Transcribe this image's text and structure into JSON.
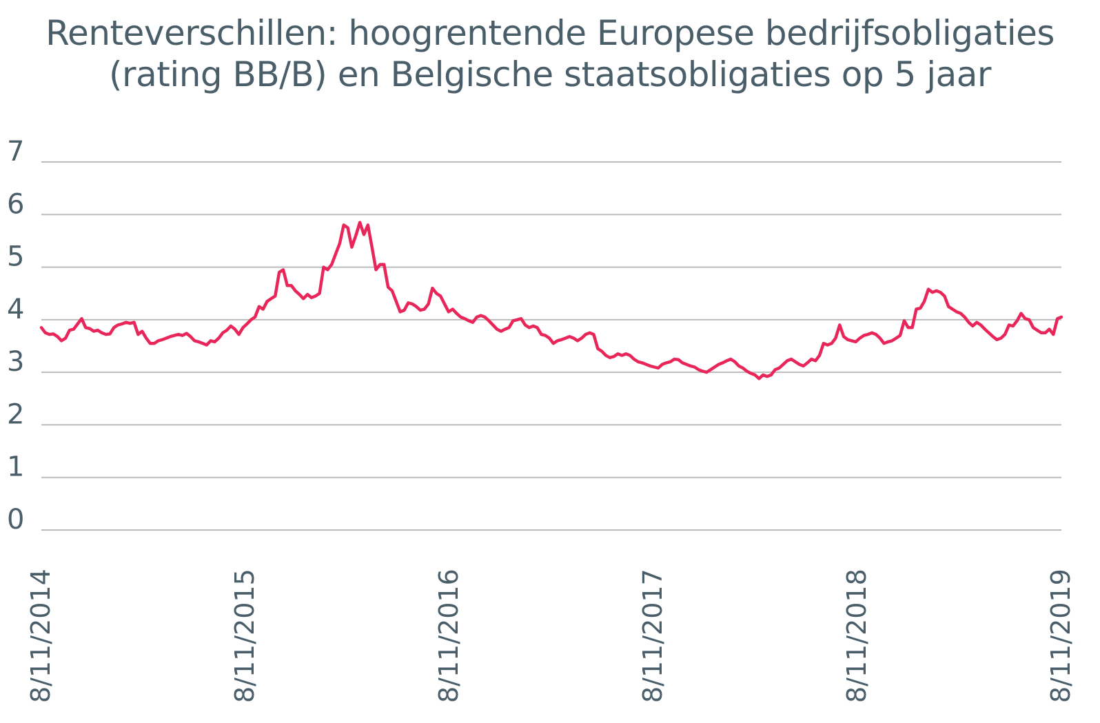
{
  "chart_data": {
    "type": "line",
    "title_lines": [
      "Renteverschillen: hoogrentende Europese bedrijfsobligaties",
      "(rating BB/B) en Belgische staatsobligaties op 5 jaar"
    ],
    "xlabel": "",
    "ylabel": "",
    "ylim": [
      0,
      7
    ],
    "y_ticks": [
      "0",
      "1",
      "2",
      "3",
      "4",
      "5",
      "6",
      "7"
    ],
    "x_tick_labels": [
      "8/11/2014",
      "8/11/2015",
      "8/11/2016",
      "8/11/2017",
      "8/11/2018",
      "8/11/2019"
    ],
    "x_range_years": [
      2014,
      2019
    ],
    "grid": true,
    "legend": "none",
    "series": [
      {
        "color": "#e8265a",
        "values": [
          3.85,
          3.75,
          3.72,
          3.73,
          3.68,
          3.6,
          3.65,
          3.8,
          3.82,
          3.92,
          4.02,
          3.85,
          3.83,
          3.78,
          3.8,
          3.75,
          3.72,
          3.73,
          3.85,
          3.9,
          3.92,
          3.95,
          3.93,
          3.95,
          3.72,
          3.78,
          3.65,
          3.55,
          3.55,
          3.6,
          3.62,
          3.65,
          3.68,
          3.7,
          3.72,
          3.7,
          3.74,
          3.68,
          3.6,
          3.58,
          3.55,
          3.52,
          3.6,
          3.58,
          3.65,
          3.75,
          3.8,
          3.88,
          3.82,
          3.72,
          3.85,
          3.92,
          4.0,
          4.05,
          4.25,
          4.2,
          4.35,
          4.4,
          4.45,
          4.9,
          4.95,
          4.65,
          4.65,
          4.55,
          4.48,
          4.4,
          4.48,
          4.42,
          4.45,
          4.5,
          5.0,
          4.95,
          5.05,
          5.25,
          5.45,
          5.8,
          5.75,
          5.38,
          5.6,
          5.85,
          5.62,
          5.8,
          5.38,
          4.95,
          5.05,
          5.05,
          4.62,
          4.55,
          4.35,
          4.15,
          4.18,
          4.32,
          4.3,
          4.25,
          4.18,
          4.2,
          4.3,
          4.6,
          4.5,
          4.45,
          4.3,
          4.15,
          4.2,
          4.12,
          4.05,
          4.02,
          3.98,
          3.95,
          4.05,
          4.08,
          4.05,
          3.98,
          3.9,
          3.82,
          3.78,
          3.82,
          3.85,
          3.98,
          4.0,
          4.02,
          3.9,
          3.85,
          3.88,
          3.85,
          3.72,
          3.7,
          3.65,
          3.55,
          3.6,
          3.62,
          3.65,
          3.68,
          3.65,
          3.6,
          3.65,
          3.72,
          3.75,
          3.72,
          3.45,
          3.4,
          3.32,
          3.28,
          3.3,
          3.35,
          3.32,
          3.35,
          3.32,
          3.25,
          3.2,
          3.18,
          3.15,
          3.12,
          3.1,
          3.08,
          3.15,
          3.18,
          3.2,
          3.25,
          3.24,
          3.18,
          3.15,
          3.12,
          3.1,
          3.05,
          3.02,
          3.0,
          3.05,
          3.1,
          3.15,
          3.18,
          3.22,
          3.25,
          3.2,
          3.12,
          3.08,
          3.02,
          2.98,
          2.95,
          2.88,
          2.95,
          2.92,
          2.95,
          3.05,
          3.08,
          3.15,
          3.22,
          3.25,
          3.2,
          3.15,
          3.12,
          3.18,
          3.25,
          3.22,
          3.32,
          3.55,
          3.52,
          3.55,
          3.65,
          3.9,
          3.68,
          3.62,
          3.6,
          3.58,
          3.65,
          3.7,
          3.72,
          3.75,
          3.72,
          3.65,
          3.55,
          3.58,
          3.6,
          3.65,
          3.7,
          3.98,
          3.85,
          3.85,
          4.2,
          4.22,
          4.35,
          4.58,
          4.52,
          4.55,
          4.52,
          4.45,
          4.25,
          4.2,
          4.15,
          4.12,
          4.05,
          3.95,
          3.88,
          3.95,
          3.9,
          3.82,
          3.75,
          3.68,
          3.62,
          3.65,
          3.72,
          3.9,
          3.88,
          3.98,
          4.12,
          4.02,
          4.0,
          3.85,
          3.8,
          3.75,
          3.75,
          3.82,
          3.72,
          4.02,
          4.05
        ]
      }
    ]
  }
}
